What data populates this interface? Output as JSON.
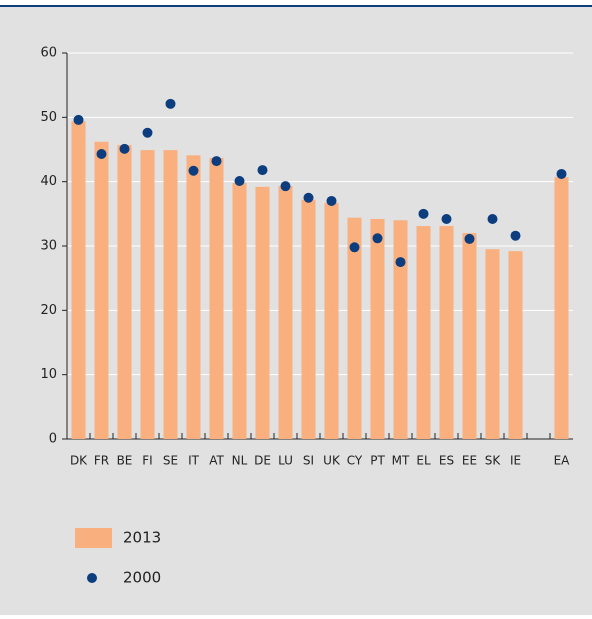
{
  "chart_data": {
    "type": "bar-dot",
    "categories": [
      "DK",
      "FR",
      "BE",
      "FI",
      "SE",
      "IT",
      "AT",
      "NL",
      "DE",
      "LU",
      "SI",
      "UK",
      "CY",
      "PT",
      "MT",
      "EL",
      "ES",
      "EE",
      "SK",
      "IE",
      null,
      "EA"
    ],
    "series": [
      {
        "name": "2013",
        "color": "#f9b07e",
        "type": "bar",
        "values": [
          49.4,
          46.2,
          45.7,
          44.9,
          44.9,
          44.1,
          43.7,
          39.8,
          39.2,
          39.3,
          37.2,
          36.7,
          34.4,
          34.2,
          34.0,
          33.1,
          33.1,
          32.0,
          29.5,
          29.2,
          null,
          40.7
        ]
      },
      {
        "name": "2000",
        "color": "#0b3d7f",
        "type": "dot",
        "values": [
          49.6,
          44.3,
          45.1,
          47.6,
          52.1,
          41.7,
          43.2,
          40.1,
          41.8,
          39.3,
          37.5,
          37.0,
          29.8,
          31.2,
          27.5,
          35.0,
          34.2,
          31.1,
          34.2,
          31.6,
          null,
          41.2
        ]
      }
    ],
    "ylim": [
      0,
      60
    ],
    "yticks": [
      0,
      10,
      20,
      30,
      40,
      50,
      60
    ],
    "grid": true
  }
}
